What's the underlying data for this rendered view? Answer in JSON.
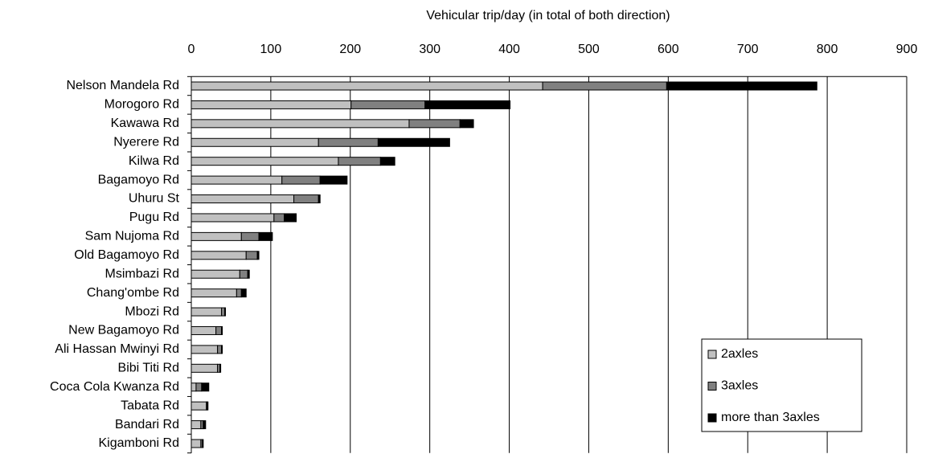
{
  "chart_data": {
    "type": "stacked_barh",
    "x_label": "Vehicular trip/day (in total of both direction)",
    "categories": [
      "Nelson Mandela Rd",
      "Morogoro Rd",
      "Kawawa Rd",
      "Nyerere Rd",
      "Kilwa Rd",
      "Bagamoyo Rd",
      "Uhuru St",
      "Pugu Rd",
      "Sam Nujoma Rd",
      "Old Bagamoyo Rd",
      "Msimbazi Rd",
      "Chang'ombe Rd",
      "Mbozi Rd",
      "New Bagamoyo Rd",
      "Ali Hassan Mwinyi Rd",
      "Bibi Titi Rd",
      "Coca Cola Kwanza Rd",
      "Tabata Rd",
      "Bandari Rd",
      "Kigamboni Rd"
    ],
    "series": [
      {
        "name": "2axles",
        "color": "#c0c0c0",
        "values": [
          442,
          201,
          274,
          160,
          185,
          114,
          129,
          104,
          63,
          69,
          61,
          57,
          38,
          31,
          33,
          33,
          6,
          19,
          12,
          12
        ]
      },
      {
        "name": "3axles",
        "color": "#808080",
        "values": [
          156,
          93,
          64,
          75,
          53,
          48,
          31,
          13,
          22,
          14,
          10,
          6,
          4,
          7,
          5,
          3,
          7,
          1,
          3,
          2
        ]
      },
      {
        "name": "more than 3axles",
        "color": "#000000",
        "values": [
          189,
          107,
          17,
          90,
          18,
          34,
          2,
          15,
          17,
          2,
          2,
          6,
          1,
          1,
          1,
          1,
          9,
          1,
          3,
          1
        ]
      }
    ],
    "xlim": [
      0,
      900
    ],
    "xticks": [
      0,
      100,
      200,
      300,
      400,
      500,
      600,
      700,
      800,
      900
    ],
    "grid": true,
    "legend": "lower right"
  }
}
